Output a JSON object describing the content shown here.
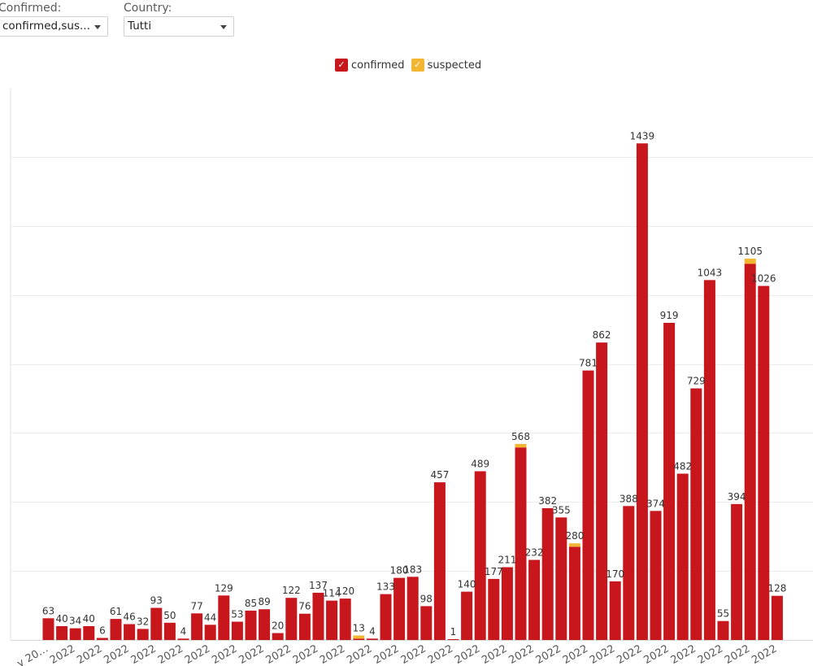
{
  "filters": {
    "confirmed": {
      "label": "Confirmed:",
      "value": "confirmed,sus..."
    },
    "country": {
      "label": "Country:",
      "value": "Tutti"
    }
  },
  "chart_data": {
    "type": "bar",
    "stacked": true,
    "grid": true,
    "legend_placement": "top-center",
    "colors": {
      "confirmed": "#c8161d",
      "suspected": "#f2b632"
    },
    "series": [
      {
        "name": "confirmed",
        "values": [
          63,
          40,
          34,
          40,
          6,
          61,
          46,
          32,
          93,
          50,
          4,
          77,
          44,
          129,
          53,
          85,
          89,
          20,
          122,
          76,
          137,
          114,
          120,
          4,
          4,
          133,
          180,
          183,
          98,
          457,
          1,
          140,
          489,
          177,
          211,
          558,
          232,
          382,
          355,
          270,
          781,
          862,
          170,
          388,
          1439,
          374,
          919,
          482,
          729,
          1043,
          55,
          394,
          1090,
          1026,
          128
        ]
      },
      {
        "name": "suspected",
        "values": [
          0,
          0,
          0,
          0,
          0,
          0,
          0,
          0,
          0,
          0,
          0,
          0,
          0,
          0,
          0,
          0,
          0,
          0,
          0,
          0,
          0,
          0,
          0,
          9,
          0,
          0,
          0,
          0,
          0,
          0,
          0,
          0,
          0,
          0,
          0,
          10,
          0,
          0,
          0,
          10,
          0,
          0,
          0,
          0,
          0,
          0,
          0,
          0,
          0,
          0,
          0,
          0,
          15,
          0,
          0
        ]
      }
    ],
    "data_labels": [
      "63",
      "40",
      "34",
      "40",
      "6",
      "61",
      "46",
      "32",
      "93",
      "50",
      "4",
      "77",
      "44",
      "129",
      "53",
      "85",
      "89",
      "20",
      "122",
      "76",
      "137",
      "114",
      "120",
      "13",
      "4",
      "133",
      "180",
      "183",
      "98",
      "457",
      "1",
      "140",
      "489",
      "177",
      "211",
      "568",
      "232",
      "382",
      "355",
      "280",
      "781",
      "862",
      "170",
      "388",
      "1439",
      "374",
      "919",
      "482",
      "729",
      "1043",
      "55",
      "394",
      "1105",
      "1026",
      "128"
    ],
    "ylim": [
      0,
      1600
    ],
    "x_tick_labels": [
      "y 20…",
      "2022",
      "2022",
      "2022",
      "2022",
      "2022",
      "2022",
      "2022",
      "2022",
      "2022",
      "2022",
      "2022",
      "2022",
      "2022",
      "2022",
      "2022",
      "2022",
      "2022",
      "2022",
      "2022",
      "2022",
      "2022",
      "2022",
      "2022",
      "2022",
      "2022",
      "2022",
      "2022"
    ]
  }
}
